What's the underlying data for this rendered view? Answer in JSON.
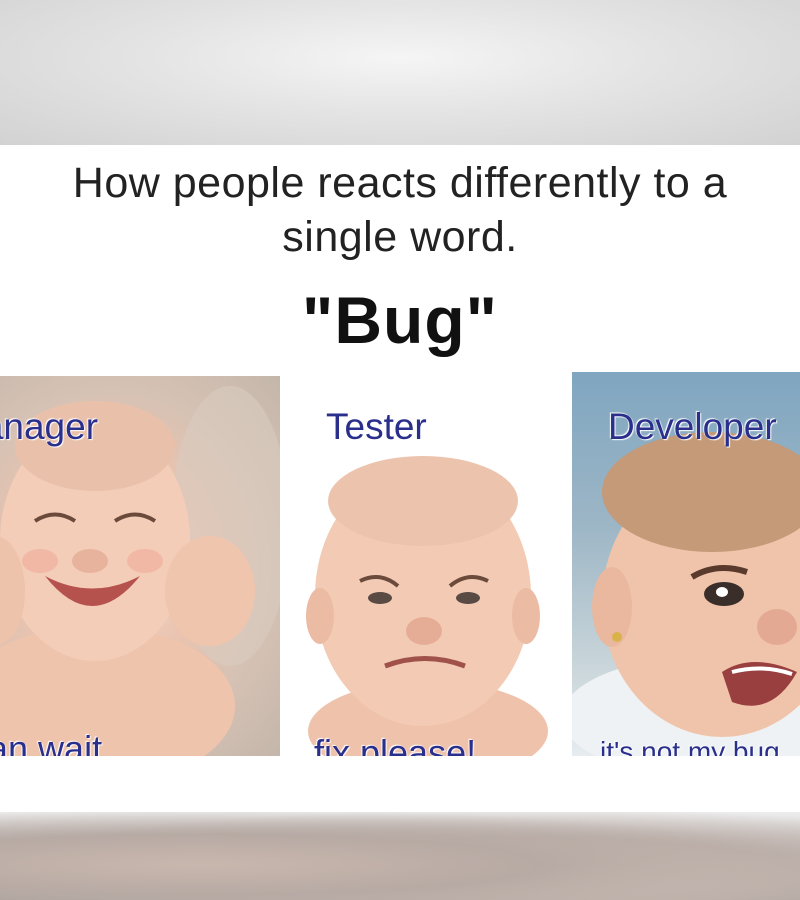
{
  "headline": {
    "line1": "How people reacts differently to a",
    "line2": "single word."
  },
  "keyword": "\"Bug\"",
  "panels": [
    {
      "role": "Manager",
      "caption": "can wait",
      "icon": "laughing-baby-icon"
    },
    {
      "role": "Tester",
      "caption": "fix please!",
      "icon": "crying-baby-icon"
    },
    {
      "role": "Developer",
      "caption": "it's not my bug",
      "icon": "angry-baby-icon"
    }
  ],
  "colors": {
    "text_dark": "#222222",
    "label_blue": "#2a2f8c",
    "skin": "#f2c8b3"
  }
}
